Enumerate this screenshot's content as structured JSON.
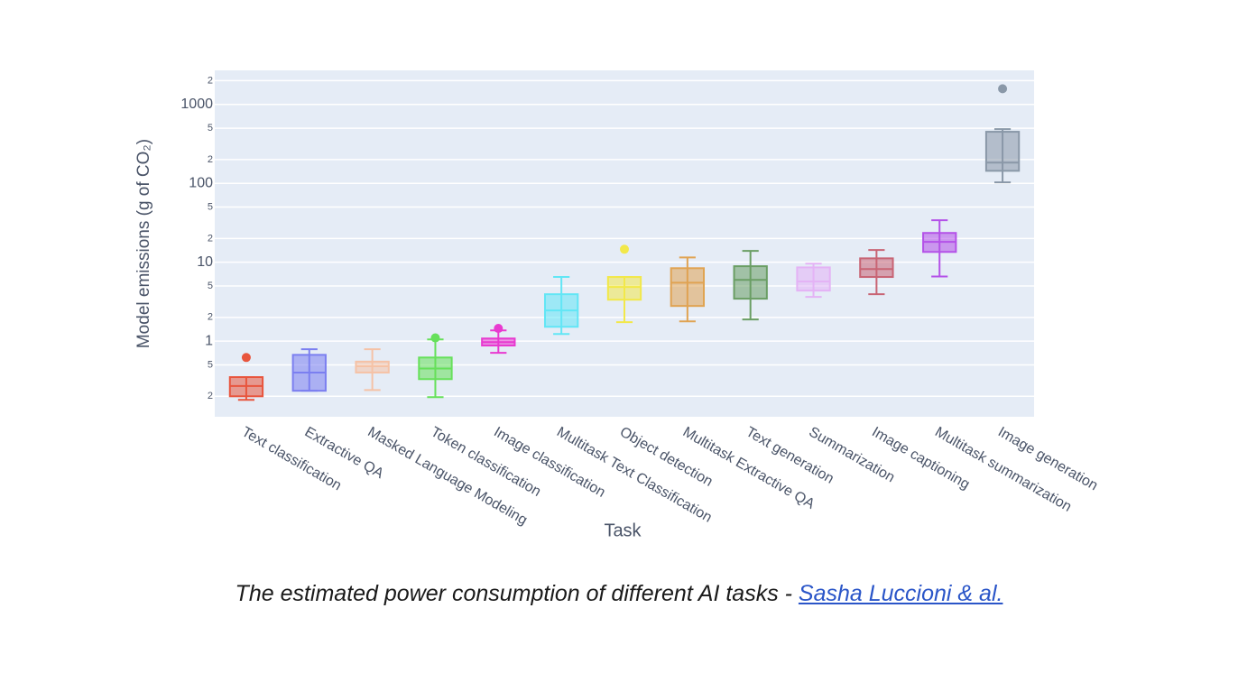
{
  "chart_data": {
    "type": "box",
    "y_label": "Model emissions (g of CO₂)",
    "x_label": "Task",
    "y_scale": "log",
    "grid": true,
    "ylim": [
      0.11,
      2700
    ],
    "yticks": [
      {
        "value": 0.2,
        "label": "2"
      },
      {
        "value": 0.5,
        "label": "5"
      },
      1,
      {
        "value": 2,
        "label": "2"
      },
      {
        "value": 5,
        "label": "5"
      },
      10,
      {
        "value": 20,
        "label": "2"
      },
      {
        "value": 50,
        "label": "5"
      },
      100,
      {
        "value": 200,
        "label": "2"
      },
      {
        "value": 500,
        "label": "5"
      },
      1000,
      {
        "value": 2000,
        "label": "2"
      }
    ],
    "categories": [
      "Text classification",
      "Extractive QA",
      "Masked Language Modeling",
      "Token classification",
      "Image classification",
      "Multitask Text Classification",
      "Object detection",
      "Multitask Extractive QA",
      "Text generation",
      "Summarization",
      "Image captioning",
      "Multitask summarization",
      "Image generation"
    ],
    "boxes": [
      {
        "color": "#e8553d",
        "min": 0.18,
        "q1": 0.2,
        "median": 0.27,
        "q3": 0.35,
        "max": 0.35,
        "outliers": [
          0.62
        ]
      },
      {
        "color": "#7b7ff0",
        "min": 0.235,
        "q1": 0.235,
        "median": 0.4,
        "q3": 0.67,
        "max": 0.79,
        "outliers": []
      },
      {
        "color": "#f5c2a6",
        "min": 0.24,
        "q1": 0.4,
        "median": 0.48,
        "q3": 0.55,
        "max": 0.79,
        "outliers": []
      },
      {
        "color": "#66e05a",
        "min": 0.195,
        "q1": 0.33,
        "median": 0.45,
        "q3": 0.62,
        "max": 1.05,
        "outliers": [
          1.1
        ]
      },
      {
        "color": "#e83ad0",
        "min": 0.71,
        "q1": 0.88,
        "median": 0.97,
        "q3": 1.08,
        "max": 1.37,
        "outliers": [
          1.45
        ]
      },
      {
        "color": "#62e6f5",
        "min": 1.23,
        "q1": 1.52,
        "median": 2.45,
        "q3": 3.93,
        "max": 6.5,
        "outliers": []
      },
      {
        "color": "#f2e84a",
        "min": 1.74,
        "q1": 3.35,
        "median": 4.85,
        "q3": 6.5,
        "max": 6.5,
        "outliers": [
          14.6
        ]
      },
      {
        "color": "#e0a352",
        "min": 1.78,
        "q1": 2.79,
        "median": 5.5,
        "q3": 8.4,
        "max": 11.5,
        "outliers": []
      },
      {
        "color": "#6a9e64",
        "min": 1.88,
        "q1": 3.45,
        "median": 5.98,
        "q3": 8.9,
        "max": 13.9,
        "outliers": []
      },
      {
        "color": "#e4b3f5",
        "min": 3.63,
        "q1": 4.37,
        "median": 5.7,
        "q3": 8.6,
        "max": 9.6,
        "outliers": []
      },
      {
        "color": "#c86474",
        "min": 3.93,
        "q1": 6.5,
        "median": 8.2,
        "q3": 11.2,
        "max": 14.3,
        "outliers": []
      },
      {
        "color": "#b452e8",
        "min": 6.6,
        "q1": 13.5,
        "median": 18.1,
        "q3": 23.5,
        "max": 34,
        "outliers": []
      },
      {
        "color": "#8a98a8",
        "min": 103,
        "q1": 144,
        "median": 183,
        "q3": 450,
        "max": 487,
        "outliers": [
          1580
        ]
      }
    ]
  },
  "caption": "The estimated power consumption of different AI tasks - ",
  "caption_link": "Sasha Luccioni & al."
}
